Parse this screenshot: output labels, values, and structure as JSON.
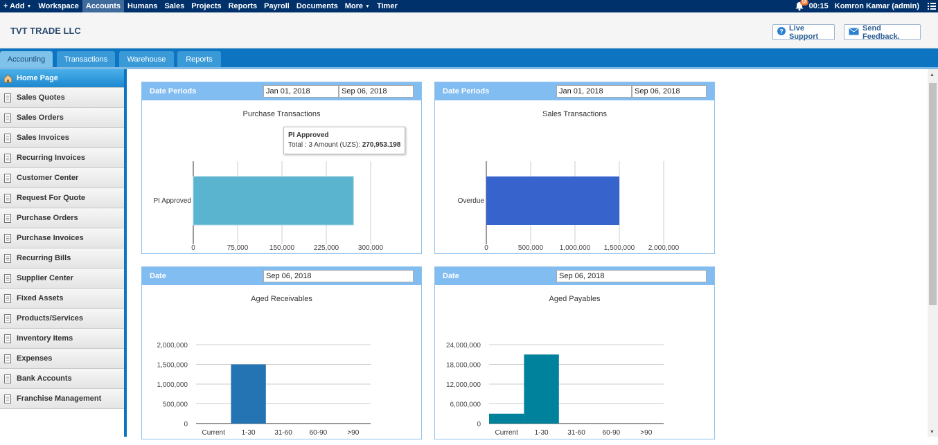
{
  "topbar": {
    "add": "+ Add",
    "items": [
      "Workspace",
      "Accounts",
      "Humans",
      "Sales",
      "Projects",
      "Reports",
      "Payroll",
      "Documents",
      "More",
      "Timer"
    ],
    "active_index": 1,
    "notification_count": "18",
    "time": "00:15",
    "user": "Komron Kamar (admin)"
  },
  "header": {
    "company": "TVT TRADE LLC",
    "live_support": "Live Support",
    "send_feedback": "Send Feedback."
  },
  "tabs": [
    "Accounting",
    "Transactions",
    "Warehouse",
    "Reports"
  ],
  "active_tab": 0,
  "sidebar": {
    "items": [
      "Home Page",
      "Sales Quotes",
      "Sales Orders",
      "Sales Invoices",
      "Recurring Invoices",
      "Customer Center",
      "Request For Quote",
      "Purchase Orders",
      "Purchase Invoices",
      "Recurring Bills",
      "Supplier Center",
      "Fixed Assets",
      "Products/Services",
      "Inventory Items",
      "Expenses",
      "Bank Accounts",
      "Franchise Management"
    ],
    "active_index": 0
  },
  "panels": {
    "purchase": {
      "header_label": "Date Periods",
      "date_from": "Jan 01, 2018",
      "date_to": "Sep 06, 2018",
      "title": "Purchase Transactions",
      "tooltip_title": "PI Approved",
      "tooltip_text": "Total : 3 Amount (UZS): ",
      "tooltip_value": "270,953.198"
    },
    "sales": {
      "header_label": "Date Periods",
      "date_from": "Jan 01, 2018",
      "date_to": "Sep 06, 2018",
      "title": "Sales Transactions"
    },
    "receivables": {
      "header_label": "Date",
      "date": "Sep 06, 2018",
      "title": "Aged Receivables"
    },
    "payables": {
      "header_label": "Date",
      "date": "Sep 06, 2018",
      "title": "Aged Payables"
    }
  },
  "colors": {
    "purchase_bar": "#5ab3cf",
    "sales_bar": "#3663cc",
    "receivables_bar": "#2474b3",
    "payables_bar": "#00819c",
    "panel_header": "#82bdf2"
  },
  "chart_data": [
    {
      "type": "bar",
      "orientation": "horizontal",
      "title": "Purchase Transactions",
      "categories": [
        "PI Approved"
      ],
      "values": [
        270953.198
      ],
      "xlim": [
        0,
        300000
      ],
      "ticks": [
        0,
        75000,
        150000,
        225000,
        300000
      ],
      "tick_labels": [
        "0",
        "75,000",
        "150,000",
        "225,000",
        "300,000"
      ],
      "color": "#5ab3cf"
    },
    {
      "type": "bar",
      "orientation": "horizontal",
      "title": "Sales Transactions",
      "categories": [
        "Overdue"
      ],
      "values": [
        1500000
      ],
      "xlim": [
        0,
        2000000
      ],
      "ticks": [
        0,
        500000,
        1000000,
        1500000,
        2000000
      ],
      "tick_labels": [
        "0",
        "500,000",
        "1,000,000",
        "1,500,000",
        "2,000,000"
      ],
      "color": "#3663cc"
    },
    {
      "type": "bar",
      "title": "Aged Receivables",
      "categories": [
        "Current",
        "1-30",
        "31-60",
        "60-90",
        ">90"
      ],
      "values": [
        0,
        1500000,
        0,
        0,
        0
      ],
      "ylim": [
        0,
        2000000
      ],
      "ticks": [
        0,
        500000,
        1000000,
        1500000,
        2000000
      ],
      "tick_labels": [
        "0",
        "500,000",
        "1,000,000",
        "1,500,000",
        "2,000,000"
      ],
      "color": "#2474b3"
    },
    {
      "type": "bar",
      "title": "Aged Payables",
      "categories": [
        "Current",
        "1-30",
        "31-60",
        "60-90",
        ">90"
      ],
      "values": [
        3000000,
        21000000,
        0,
        0,
        0
      ],
      "ylim": [
        0,
        24000000
      ],
      "ticks": [
        0,
        6000000,
        12000000,
        18000000,
        24000000
      ],
      "tick_labels": [
        "0",
        "6,000,000",
        "12,000,000",
        "18,000,000",
        "24,000,000"
      ],
      "color": "#00819c"
    }
  ]
}
